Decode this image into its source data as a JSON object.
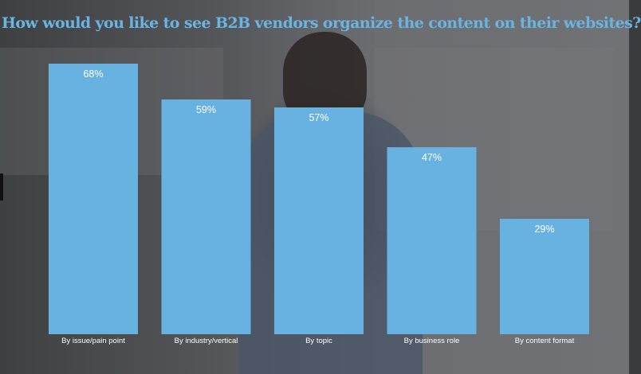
{
  "title": "How would you like to see B2B vendors organize the content on their websites?",
  "chart_data": {
    "type": "bar",
    "title": "How would you like to see B2B vendors organize the content on their websites?",
    "categories": [
      "By issue/pain point",
      "By industry/vertical",
      "By topic",
      "By business role",
      "By content format"
    ],
    "values": [
      68,
      59,
      57,
      47,
      29
    ],
    "value_labels": [
      "68%",
      "59%",
      "57%",
      "47%",
      "29%"
    ],
    "ylim": [
      0,
      68
    ],
    "grid": false,
    "bar_color": "#68b2e1",
    "title_color": "#6ab4e3"
  }
}
